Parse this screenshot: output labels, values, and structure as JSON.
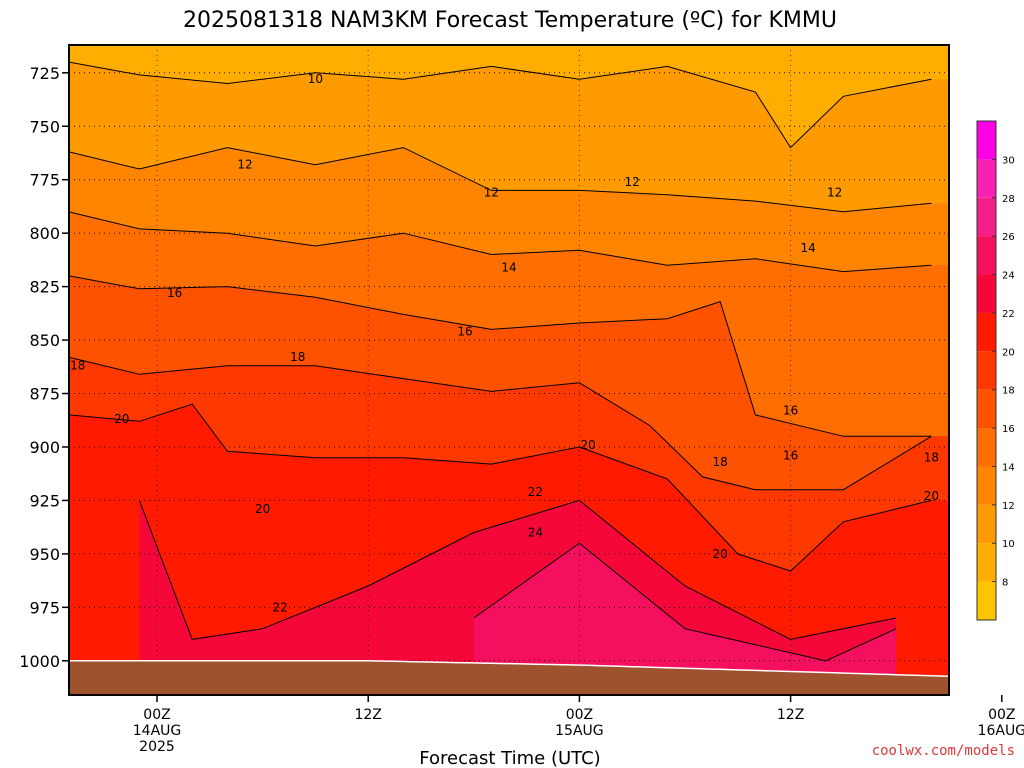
{
  "chart_data": {
    "type": "contour",
    "title": "2025081318 NAM3KM Forecast Temperature (ºC) for KMMU",
    "xlabel": "Forecast Time (UTC)",
    "ylabel": "",
    "yaxis": {
      "scale": "pressure-inverted",
      "unit": "hPa",
      "ticks": [
        725,
        750,
        775,
        800,
        825,
        850,
        875,
        900,
        925,
        950,
        975,
        1000
      ],
      "range": [
        712,
        1016
      ]
    },
    "xaxis": {
      "range_hours": [
        -5,
        45
      ],
      "ticks": [
        {
          "hour": 0,
          "lines": [
            "00Z",
            "14AUG",
            "2025"
          ]
        },
        {
          "hour": 12,
          "lines": [
            "12Z"
          ]
        },
        {
          "hour": 24,
          "lines": [
            "00Z",
            "15AUG"
          ]
        },
        {
          "hour": 36,
          "lines": [
            "12Z"
          ]
        },
        {
          "hour": 48,
          "lines": [
            "00Z",
            "16AUG"
          ]
        }
      ]
    },
    "grid": true,
    "colorbar": {
      "position": "right",
      "levels": [
        8,
        10,
        12,
        14,
        16,
        18,
        20,
        22,
        24,
        26,
        28,
        30
      ],
      "colors": [
        "#ffc400",
        "#ffad00",
        "#ff9a00",
        "#ff8400",
        "#ff6e00",
        "#ff5200",
        "#ff3800",
        "#ff1a00",
        "#f5073a",
        "#f50f5f",
        "#f51f88",
        "#f522b4",
        "#ff00e6"
      ]
    },
    "contour_interval": 2,
    "isotherms": [
      {
        "value": 10,
        "pressure_by_hour": [
          [
            -5,
            720
          ],
          [
            -1,
            726
          ],
          [
            4,
            730
          ],
          [
            9,
            725
          ],
          [
            14,
            728
          ],
          [
            19,
            722
          ],
          [
            24,
            728
          ],
          [
            29,
            722
          ],
          [
            34,
            734
          ],
          [
            36,
            760
          ],
          [
            39,
            736
          ],
          [
            44,
            728
          ]
        ]
      },
      {
        "value": 12,
        "pressure_by_hour": [
          [
            -5,
            762
          ],
          [
            -1,
            770
          ],
          [
            4,
            760
          ],
          [
            9,
            768
          ],
          [
            14,
            760
          ],
          [
            19,
            780
          ],
          [
            24,
            780
          ],
          [
            29,
            782
          ],
          [
            34,
            785
          ],
          [
            39,
            790
          ],
          [
            44,
            786
          ]
        ]
      },
      {
        "value": 14,
        "pressure_by_hour": [
          [
            -5,
            790
          ],
          [
            -1,
            798
          ],
          [
            4,
            800
          ],
          [
            9,
            806
          ],
          [
            14,
            800
          ],
          [
            19,
            810
          ],
          [
            24,
            808
          ],
          [
            29,
            815
          ],
          [
            34,
            812
          ],
          [
            39,
            818
          ],
          [
            44,
            815
          ]
        ]
      },
      {
        "value": 16,
        "pressure_by_hour": [
          [
            -5,
            820
          ],
          [
            -1,
            826
          ],
          [
            4,
            825
          ],
          [
            9,
            830
          ],
          [
            14,
            838
          ],
          [
            19,
            845
          ],
          [
            24,
            842
          ],
          [
            29,
            840
          ],
          [
            32,
            832
          ],
          [
            34,
            885
          ],
          [
            39,
            895
          ],
          [
            44,
            895
          ]
        ]
      },
      {
        "value": 18,
        "pressure_by_hour": [
          [
            -5,
            858
          ],
          [
            -1,
            866
          ],
          [
            4,
            862
          ],
          [
            9,
            862
          ],
          [
            14,
            868
          ],
          [
            19,
            874
          ],
          [
            24,
            870
          ],
          [
            28,
            890
          ],
          [
            31,
            914
          ],
          [
            34,
            920
          ],
          [
            39,
            920
          ],
          [
            44,
            895
          ]
        ]
      },
      {
        "value": 20,
        "pressure_by_hour": [
          [
            -5,
            885
          ],
          [
            -1,
            888
          ],
          [
            2,
            880
          ],
          [
            4,
            902
          ],
          [
            9,
            905
          ],
          [
            14,
            905
          ],
          [
            19,
            908
          ],
          [
            24,
            900
          ],
          [
            29,
            915
          ],
          [
            33,
            950
          ],
          [
            36,
            958
          ],
          [
            39,
            935
          ],
          [
            44,
            925
          ]
        ]
      },
      {
        "value": 22,
        "pressure_by_hour": [
          [
            -1,
            925
          ],
          [
            2,
            990
          ],
          [
            6,
            985
          ],
          [
            12,
            965
          ],
          [
            18,
            940
          ],
          [
            24,
            925
          ],
          [
            30,
            965
          ],
          [
            36,
            990
          ],
          [
            42,
            980
          ]
        ]
      },
      {
        "value": 24,
        "pressure_by_hour": [
          [
            18,
            980
          ],
          [
            24,
            945
          ],
          [
            30,
            985
          ],
          [
            38,
            1000
          ],
          [
            42,
            985
          ]
        ]
      }
    ],
    "contour_labels": [
      {
        "text": "10",
        "hour": 9.0,
        "p": 728
      },
      {
        "text": "12",
        "hour": 5.0,
        "p": 768
      },
      {
        "text": "12",
        "hour": 19.0,
        "p": 781
      },
      {
        "text": "12",
        "hour": 27.0,
        "p": 776
      },
      {
        "text": "12",
        "hour": 38.5,
        "p": 781
      },
      {
        "text": "14",
        "hour": 20.0,
        "p": 816
      },
      {
        "text": "14",
        "hour": 37.0,
        "p": 807
      },
      {
        "text": "16",
        "hour": 1.0,
        "p": 828
      },
      {
        "text": "16",
        "hour": 17.5,
        "p": 846
      },
      {
        "text": "16",
        "hour": 36.0,
        "p": 883
      },
      {
        "text": "16",
        "hour": 36.0,
        "p": 904
      },
      {
        "text": "18",
        "hour": -4.5,
        "p": 862
      },
      {
        "text": "18",
        "hour": 8.0,
        "p": 858
      },
      {
        "text": "18",
        "hour": 32.0,
        "p": 907
      },
      {
        "text": "18",
        "hour": 44.0,
        "p": 905
      },
      {
        "text": "20",
        "hour": -2.0,
        "p": 887
      },
      {
        "text": "20",
        "hour": 6.0,
        "p": 929
      },
      {
        "text": "20",
        "hour": 24.5,
        "p": 899
      },
      {
        "text": "20",
        "hour": 32.0,
        "p": 950
      },
      {
        "text": "20",
        "hour": 44.0,
        "p": 923
      },
      {
        "text": "22",
        "hour": 7.0,
        "p": 975
      },
      {
        "text": "22",
        "hour": 21.5,
        "p": 921
      },
      {
        "text": "24",
        "hour": 21.5,
        "p": 940
      }
    ],
    "terrain_surface_pressure_by_hour": [
      [
        -5,
        1000
      ],
      [
        0,
        1000
      ],
      [
        12,
        1000
      ],
      [
        24,
        1002
      ],
      [
        36,
        1005
      ],
      [
        48,
        1008
      ]
    ]
  },
  "credit": "coolwx.com/models"
}
